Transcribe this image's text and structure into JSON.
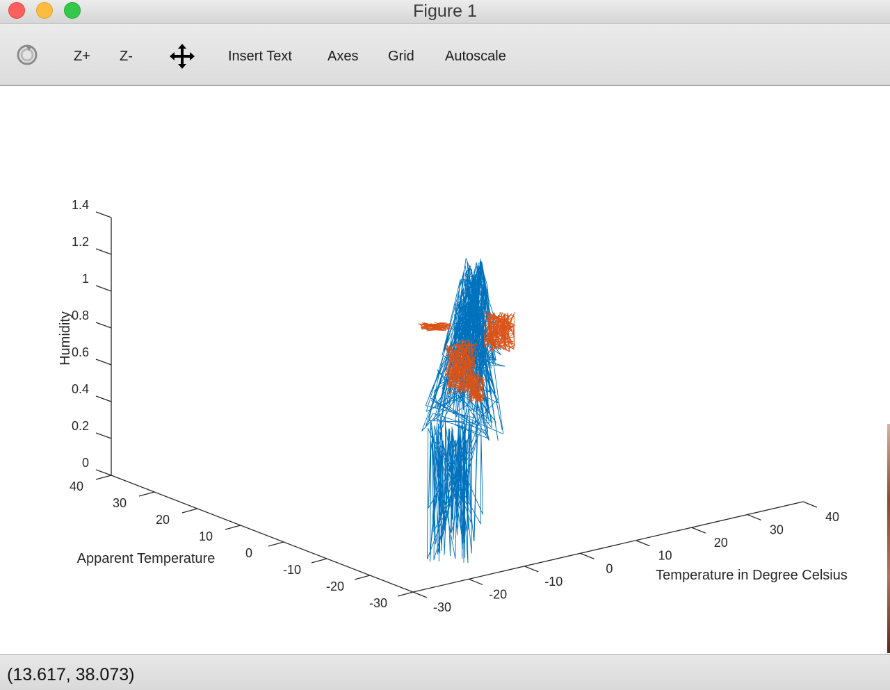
{
  "window": {
    "title": "Figure 1"
  },
  "toolbar": {
    "rotate_icon": "rotate-icon",
    "zoom_in_label": "Z+",
    "zoom_out_label": "Z-",
    "pan_icon": "pan-move-icon",
    "insert_text_label": "Insert Text",
    "axes_label": "Axes",
    "grid_label": "Grid",
    "autoscale_label": "Autoscale"
  },
  "status": {
    "coordinates": "(13.617, 38.073)"
  },
  "colors": {
    "series_blue": "#0072BD",
    "series_orange": "#D95319"
  },
  "chart_data": {
    "type": "line3d",
    "title": "",
    "xlabel": "Temperature in Degree Celsius",
    "ylabel": "Apparent Temperature",
    "zlabel": "Humidity",
    "xlim": [
      -30,
      40
    ],
    "ylim": [
      -30,
      40
    ],
    "zlim": [
      0,
      1.4
    ],
    "x_ticks": [
      "-30",
      "-20",
      "-10",
      "0",
      "10",
      "20",
      "30",
      "40"
    ],
    "y_ticks": [
      "-30",
      "-20",
      "-10",
      "0",
      "10",
      "20",
      "30",
      "40"
    ],
    "z_ticks": [
      "0",
      "0.2",
      "0.4",
      "0.6",
      "0.8",
      "1",
      "1.2",
      "1.4"
    ],
    "grid": false,
    "series": [
      {
        "color": "#0072BD",
        "x_range": [
          -20,
          40
        ],
        "y_range": [
          -25,
          40
        ],
        "z_range": [
          0,
          1
        ]
      },
      {
        "color": "#D95319",
        "x_range": [
          0,
          35
        ],
        "y_range": [
          -5,
          40
        ],
        "z_range": [
          0.4,
          0.9
        ]
      }
    ]
  }
}
